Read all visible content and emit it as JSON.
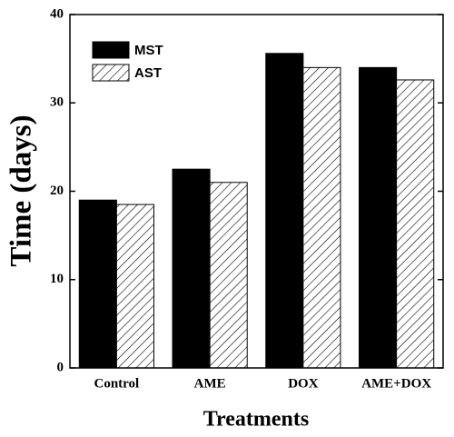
{
  "chart_data": {
    "type": "bar",
    "x_label": "Treatments",
    "y_label": "Time (days)",
    "categories": [
      "Control",
      "AME",
      "DOX",
      "AME+DOX"
    ],
    "series": [
      {
        "name": "MST",
        "color": "#000000",
        "pattern": "solid",
        "values": [
          19.0,
          22.5,
          35.6,
          34.0
        ]
      },
      {
        "name": "AST",
        "color": "#000000",
        "pattern": "hatch",
        "values": [
          18.5,
          21.0,
          34.0,
          32.6
        ]
      }
    ],
    "ylim": [
      0,
      40
    ],
    "yticks": [
      0,
      10,
      20,
      30,
      40
    ],
    "grid": false,
    "legend": "upper left"
  }
}
